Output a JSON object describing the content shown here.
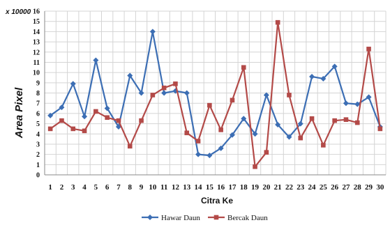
{
  "chart_data": {
    "type": "line",
    "multiplier_label": "x 10000",
    "xlabel": "Citra Ke",
    "ylabel": "Area Pixel",
    "ylim": [
      0,
      16
    ],
    "y_ticks": [
      "0",
      "1",
      "2",
      "3",
      "4",
      "5",
      "6",
      "7",
      "8",
      "9",
      "10",
      "11",
      "12",
      "13",
      "14",
      "15",
      "16"
    ],
    "categories": [
      "1",
      "2",
      "3",
      "4",
      "5",
      "6",
      "7",
      "8",
      "9",
      "10",
      "11",
      "12",
      "13",
      "14",
      "15",
      "16",
      "17",
      "18",
      "19",
      "20",
      "21",
      "22",
      "23",
      "24",
      "25",
      "26",
      "27",
      "28",
      "29",
      "30"
    ],
    "grid": true,
    "legend_position": "bottom",
    "series": [
      {
        "name": "Hawar Daun",
        "color": "#3c6eb4",
        "marker": "diamond",
        "values": [
          5.8,
          6.6,
          8.9,
          5.7,
          11.2,
          6.5,
          4.7,
          9.7,
          8.0,
          14.0,
          8.0,
          8.2,
          8.0,
          2.0,
          1.9,
          2.6,
          3.9,
          5.5,
          4.0,
          7.8,
          4.9,
          3.7,
          5.0,
          9.6,
          9.4,
          10.6,
          7.0,
          6.9,
          7.6,
          4.7
        ]
      },
      {
        "name": "Bercak Daun",
        "color": "#b34a48",
        "marker": "square",
        "values": [
          4.5,
          5.3,
          4.5,
          4.3,
          6.2,
          5.6,
          5.3,
          2.8,
          5.3,
          7.8,
          8.5,
          8.9,
          4.1,
          3.3,
          6.8,
          4.4,
          7.3,
          10.5,
          0.8,
          2.2,
          14.9,
          7.8,
          3.6,
          5.5,
          2.9,
          5.3,
          5.4,
          5.1,
          12.3,
          4.5
        ]
      }
    ]
  }
}
